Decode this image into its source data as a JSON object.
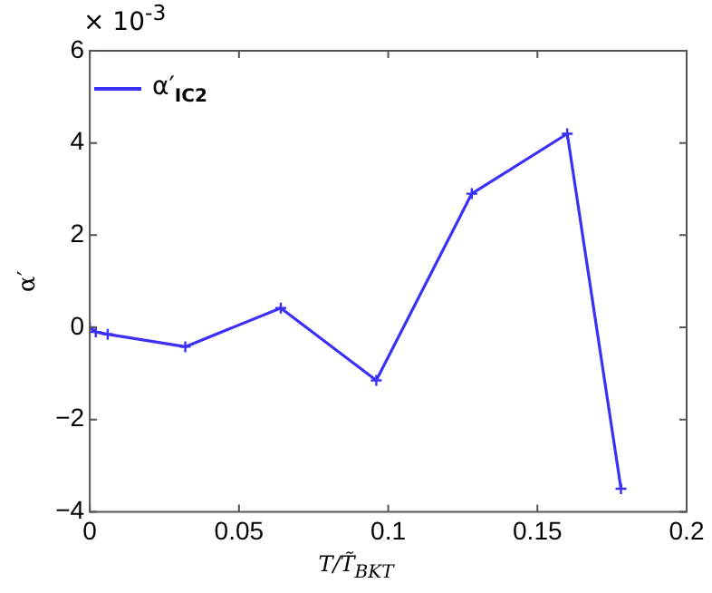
{
  "chart_data": {
    "type": "line",
    "xlabel": "T/T̃$_{BKT}$",
    "ylabel": "α′",
    "annotations": [
      "× 10$^{-3}$"
    ],
    "x": [
      0,
      0.002,
      0.006,
      0.032,
      0.064,
      0.096,
      0.128,
      0.16,
      0.178
    ],
    "series": [
      {
        "name": "α′$_{IC2}$",
        "color": "#3b30f5",
        "values": [
          0,
          -0.1,
          -0.15,
          -0.42,
          0.42,
          -1.15,
          2.9,
          4.2,
          -3.5
        ]
      }
    ],
    "xlim": [
      0,
      0.2
    ],
    "xticks": [
      0,
      0.05,
      0.1,
      0.15,
      0.2
    ],
    "ylim": [
      -4,
      6
    ],
    "yticks": [
      -4,
      -2,
      0,
      2,
      4,
      6
    ],
    "grid": false,
    "legend": "top left",
    "marker": "cross",
    "line_style": "solid"
  }
}
